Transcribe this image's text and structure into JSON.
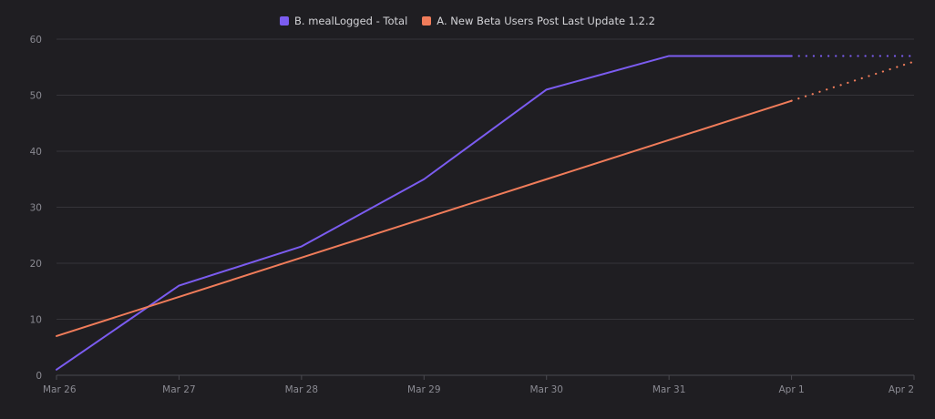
{
  "chart_data": {
    "type": "line",
    "x": [
      "Mar 26",
      "Mar 27",
      "Mar 28",
      "Mar 29",
      "Mar 30",
      "Mar 31",
      "Apr 1",
      "Apr 2"
    ],
    "ylim": [
      0,
      60
    ],
    "yticks": [
      0,
      10,
      20,
      30,
      40,
      50,
      60
    ],
    "grid": true,
    "legend_position": "top-center",
    "series": [
      {
        "name": "B. mealLogged - Total",
        "color": "#7b5cf0",
        "values": [
          1,
          16,
          23,
          35,
          51,
          57,
          57,
          57
        ],
        "dotted_from_index": 6
      },
      {
        "name": "A. New Beta Users Post Last Update 1.2.2",
        "color": "#f07c5a",
        "values": [
          7,
          14,
          21,
          28,
          35,
          42,
          49,
          56
        ],
        "dotted_from_index": 6
      }
    ]
  }
}
